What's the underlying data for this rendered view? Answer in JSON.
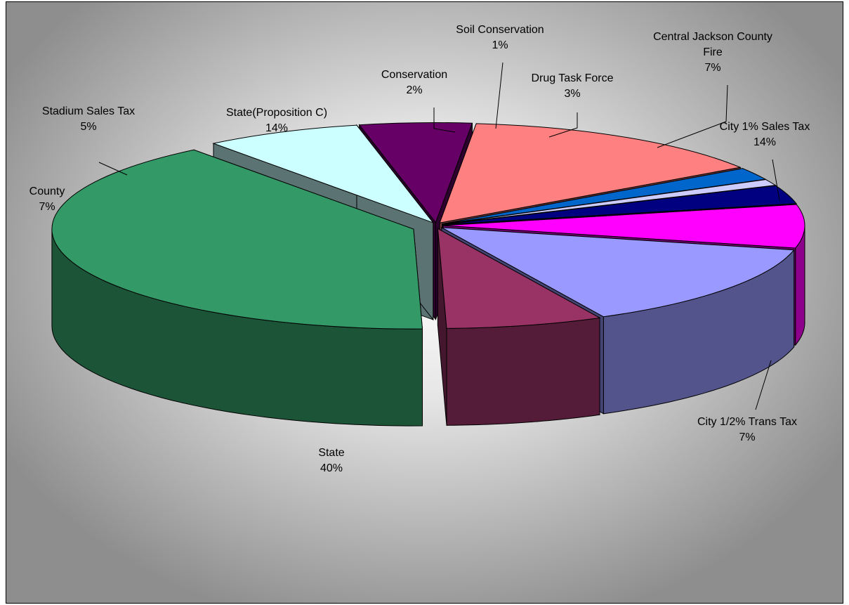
{
  "chart_data": {
    "type": "pie",
    "style": "3d-exploded",
    "title": "",
    "legend": "none",
    "slices": [
      {
        "name": "City 1% Sales Tax",
        "value": 14,
        "label": "14%",
        "color": "#9999ff"
      },
      {
        "name": "City 1/2% Trans Tax",
        "value": 7,
        "label": "7%",
        "color": "#993366"
      },
      {
        "name": "State",
        "value": 40,
        "label": "40%",
        "color": "#339966"
      },
      {
        "name": "County",
        "value": 7,
        "label": "7%",
        "color": "#ccffff"
      },
      {
        "name": "Stadium Sales Tax",
        "value": 5,
        "label": "5%",
        "color": "#660066"
      },
      {
        "name": "State(Proposition C)",
        "value": 14,
        "label": "14%",
        "color": "#ff8080"
      },
      {
        "name": "Conservation",
        "value": 2,
        "label": "2%",
        "color": "#0066cc"
      },
      {
        "name": "Soil Conservation",
        "value": 1,
        "label": "1%",
        "color": "#ccccff"
      },
      {
        "name": "Drug Task Force",
        "value": 3,
        "label": "3%",
        "color": "#000080"
      },
      {
        "name": "Central Jackson County Fire",
        "value": 7,
        "label": "7%",
        "color": "#ff00ff"
      }
    ]
  }
}
